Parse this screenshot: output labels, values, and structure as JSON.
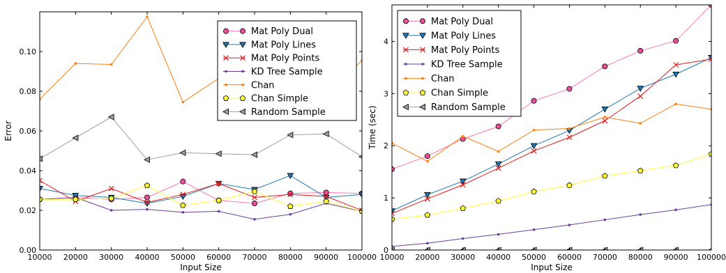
{
  "chart_data": [
    {
      "type": "line",
      "title": "",
      "xlabel": "Input Size",
      "ylabel": "Error",
      "xlim": [
        10000,
        100000
      ],
      "ylim": [
        0.0,
        0.12
      ],
      "x": [
        10000,
        20000,
        30000,
        40000,
        50000,
        60000,
        70000,
        80000,
        90000,
        100000
      ],
      "xticks": [
        10000,
        20000,
        30000,
        40000,
        50000,
        60000,
        70000,
        80000,
        90000,
        100000
      ],
      "yticks": [
        0.0,
        0.02,
        0.04,
        0.06,
        0.08,
        0.1
      ],
      "xtick_labels": [
        "10000",
        "20000",
        "30000",
        "40000",
        "50000",
        "60000",
        "70000",
        "80000",
        "90000",
        "100000"
      ],
      "ytick_labels": [
        "0.00",
        "0.02",
        "0.04",
        "0.06",
        "0.08",
        "0.10"
      ],
      "legend_position": "top-right",
      "grid": false,
      "series": [
        {
          "name": "Mat Poly Dual",
          "color": "#ff77b4",
          "marker": "circle",
          "marker_fill": "#e94f9b",
          "values": [
            0.0255,
            0.0265,
            0.0255,
            0.0265,
            0.0345,
            0.025,
            0.0235,
            0.0285,
            0.029,
            0.0285
          ]
        },
        {
          "name": "Mat Poly Lines",
          "color": "#1f77b4",
          "marker": "triangle-down",
          "marker_fill": "#1f77b4",
          "values": [
            0.031,
            0.0275,
            0.0265,
            0.0235,
            0.027,
            0.0335,
            0.0305,
            0.0375,
            0.0265,
            0.028
          ]
        },
        {
          "name": "Mat Poly Points",
          "color": "#e31a1c",
          "marker": "x",
          "marker_fill": "#e31a1c",
          "values": [
            0.035,
            0.0245,
            0.031,
            0.024,
            0.028,
            0.0335,
            0.0265,
            0.028,
            0.027,
            0.02
          ]
        },
        {
          "name": "KD Tree Sample",
          "color": "#6a3d9a",
          "marker": "dot",
          "marker_fill": "#6a3d9a",
          "values": [
            0.0255,
            0.0265,
            0.02,
            0.0205,
            0.019,
            0.0195,
            0.0155,
            0.018,
            0.0235,
            0.0195
          ]
        },
        {
          "name": "Chan",
          "color": "#ff7f0e",
          "marker": "dot",
          "marker_fill": "#ff7f0e",
          "values": [
            0.076,
            0.094,
            0.0935,
            0.1175,
            0.0745,
            0.0865,
            0.0775,
            0.0775,
            0.0775,
            0.0955
          ]
        },
        {
          "name": "Chan Simple",
          "color": "#ffff33",
          "marker": "pentagon",
          "marker_fill": "#ffff33",
          "values": [
            0.0255,
            0.0255,
            0.026,
            0.0325,
            0.0225,
            0.025,
            0.0295,
            0.022,
            0.0245,
            0.0195
          ]
        },
        {
          "name": "Random Sample",
          "color": "#9e9e9e",
          "marker": "triangle-left",
          "marker_fill": "#9e9e9e",
          "values": [
            0.046,
            0.0565,
            0.067,
            0.0455,
            0.049,
            0.0485,
            0.048,
            0.058,
            0.0585,
            0.047
          ]
        }
      ]
    },
    {
      "type": "line",
      "title": "",
      "xlabel": "Input Size",
      "ylabel": "Time (sec)",
      "xlim": [
        10000,
        100000
      ],
      "ylim": [
        0.0,
        4.7
      ],
      "x": [
        10000,
        20000,
        30000,
        40000,
        50000,
        60000,
        70000,
        80000,
        90000,
        100000
      ],
      "xticks": [
        10000,
        20000,
        30000,
        40000,
        50000,
        60000,
        70000,
        80000,
        90000,
        100000
      ],
      "yticks": [
        0,
        1,
        2,
        3,
        4
      ],
      "xtick_labels": [
        "10000",
        "20000",
        "30000",
        "40000",
        "50000",
        "60000",
        "70000",
        "80000",
        "90000",
        "100000"
      ],
      "ytick_labels": [
        "0",
        "1",
        "2",
        "3",
        "4"
      ],
      "legend_position": "top-left",
      "grid": false,
      "series": [
        {
          "name": "Mat Poly Dual",
          "color": "#ff77b4",
          "marker": "circle",
          "marker_fill": "#e94f9b",
          "values": [
            1.55,
            1.8,
            2.13,
            2.37,
            2.86,
            3.09,
            3.52,
            3.82,
            4.01,
            4.7
          ]
        },
        {
          "name": "Mat Poly Lines",
          "color": "#1f77b4",
          "marker": "triangle-down",
          "marker_fill": "#1f77b4",
          "values": [
            0.75,
            1.06,
            1.32,
            1.65,
            2.0,
            2.29,
            2.7,
            3.1,
            3.37,
            3.69
          ]
        },
        {
          "name": "Mat Poly Points",
          "color": "#e31a1c",
          "marker": "x",
          "marker_fill": "#e31a1c",
          "values": [
            0.7,
            0.98,
            1.25,
            1.57,
            1.9,
            2.16,
            2.48,
            2.95,
            3.55,
            3.66
          ]
        },
        {
          "name": "KD Tree Sample",
          "color": "#6a3d9a",
          "marker": "dot",
          "marker_fill": "#6a3d9a",
          "values": [
            0.07,
            0.13,
            0.22,
            0.3,
            0.39,
            0.48,
            0.58,
            0.68,
            0.77,
            0.87
          ]
        },
        {
          "name": "Chan",
          "color": "#ff7f0e",
          "marker": "dot",
          "marker_fill": "#ff7f0e",
          "values": [
            2.05,
            1.7,
            2.18,
            1.89,
            2.3,
            2.33,
            2.55,
            2.43,
            2.8,
            2.7
          ]
        },
        {
          "name": "Chan Simple",
          "color": "#ffff33",
          "marker": "pentagon",
          "marker_fill": "#ffff33",
          "values": [
            0.59,
            0.67,
            0.8,
            0.94,
            1.12,
            1.24,
            1.42,
            1.52,
            1.62,
            1.84
          ]
        },
        {
          "name": "Random Sample",
          "color": "#9e9e9e",
          "marker": "triangle-left",
          "marker_fill": "#9e9e9e",
          "values": [
            0.0,
            0.0,
            0.0,
            0.0,
            0.0,
            0.0,
            0.0,
            0.0,
            0.0,
            0.0
          ]
        }
      ]
    }
  ]
}
